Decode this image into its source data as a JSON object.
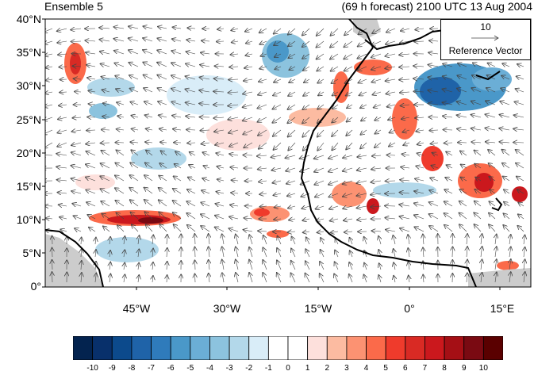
{
  "header": {
    "panel_label": "Ensemble 5",
    "forecast_label": "(69 h forecast) 2100 UTC 13 Aug 2004"
  },
  "axes": {
    "y_ticks": [
      "40°N",
      "35°N",
      "30°N",
      "25°N",
      "20°N",
      "15°N",
      "10°N",
      "5°N",
      "0°"
    ],
    "x_ticks": [
      "45°W",
      "30°W",
      "15°W",
      "0°",
      "15°E"
    ]
  },
  "reference_vector": {
    "magnitude": "10",
    "label": "Reference Vector"
  },
  "colorbar": {
    "labels": [
      "-10",
      "-9",
      "-8",
      "-7",
      "-6",
      "-5",
      "-4",
      "-3",
      "-2",
      "-1",
      "0",
      "1",
      "2",
      "3",
      "4",
      "5",
      "6",
      "7",
      "8",
      "9",
      "10"
    ],
    "colors": [
      "#03234f",
      "#08306b",
      "#0c4a8c",
      "#1f63a8",
      "#2f7bbb",
      "#4a98c9",
      "#6baed6",
      "#8cc3de",
      "#b3d8ea",
      "#d9edf8",
      "#ffffff",
      "#ffffff",
      "#fde0dc",
      "#fcbba1",
      "#fc9272",
      "#fb6a4a",
      "#ef3b2c",
      "#d92a24",
      "#cb181d",
      "#a50f15",
      "#7a0a12",
      "#5a0000"
    ]
  },
  "map_data": {
    "lon_range": [
      -60,
      20
    ],
    "lat_range": [
      0,
      40
    ],
    "field": "wind anomaly shading with wind vectors",
    "features": [
      "West African coastline",
      "Iberian/Moroccan coastline",
      "South American coast",
      "Gulf of Guinea"
    ]
  }
}
